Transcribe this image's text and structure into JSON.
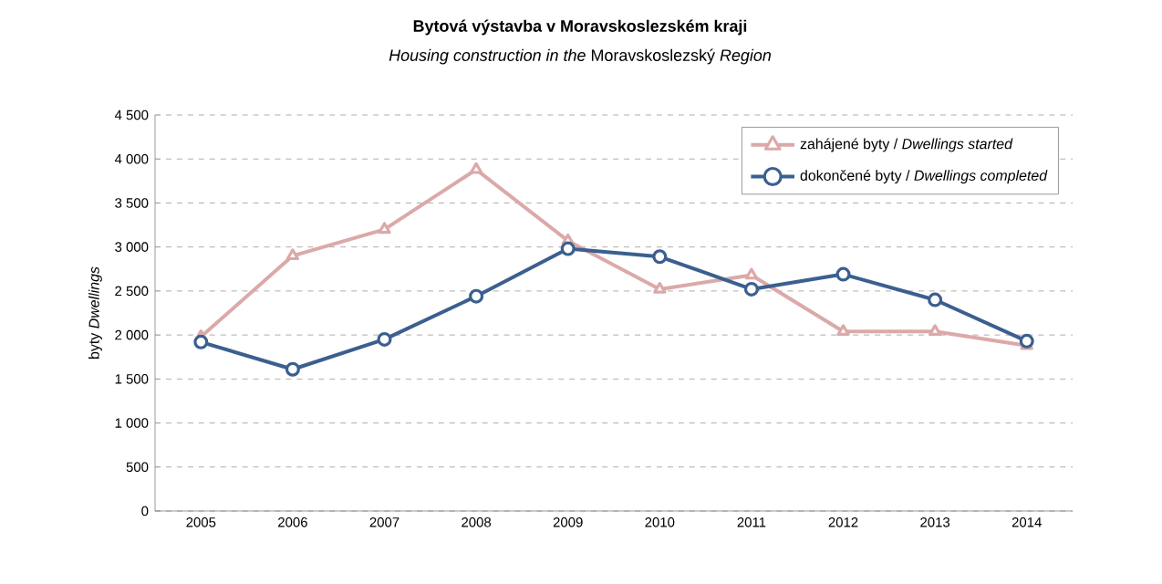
{
  "chart_data": {
    "type": "line",
    "title": "Bytová výstavba v Moravskoslezském kraji",
    "subtitle": "*Housing construction in the* Moravskoslezský *Region*",
    "ylabel": "byty *Dwellings*",
    "categories": [
      "2005",
      "2006",
      "2007",
      "2008",
      "2009",
      "2010",
      "2011",
      "2012",
      "2013",
      "2014"
    ],
    "series": [
      {
        "name": "zahájené byty / *Dwellings started*",
        "color": "#dba9a9",
        "marker": "triangle",
        "values": [
          1980,
          2900,
          3200,
          3880,
          3070,
          2520,
          2680,
          2040,
          2040,
          1880
        ]
      },
      {
        "name": "dokončené byty / *Dwellings completed*",
        "color": "#3b5f8f",
        "marker": "circle",
        "values": [
          1920,
          1610,
          1950,
          2440,
          2980,
          2890,
          2520,
          2690,
          2400,
          1930
        ]
      }
    ],
    "ylim": [
      0,
      4500
    ],
    "yticks": [
      0,
      {
        "value": 500,
        "label": "500"
      },
      {
        "value": 1000,
        "label": "1 000"
      },
      {
        "value": 1500,
        "label": "1 500"
      },
      {
        "value": 2000,
        "label": "2 000"
      },
      {
        "value": 2500,
        "label": "2 500"
      },
      {
        "value": 3000,
        "label": "3 000"
      },
      {
        "value": 3500,
        "label": "3 500"
      },
      {
        "value": 4000,
        "label": "4 000"
      },
      {
        "value": 4500,
        "label": "4 500"
      }
    ],
    "grid": "y",
    "legend": "top right",
    "line_style": "solid"
  }
}
